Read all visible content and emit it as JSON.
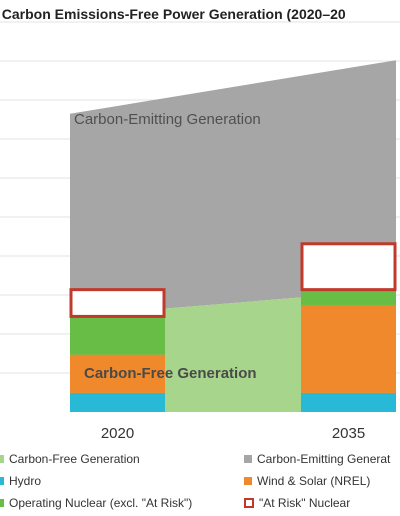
{
  "chart_data": {
    "type": "area",
    "title": ". Carbon Emissions-Free Power Generation (2020–20",
    "categories": [
      "2020",
      "2035"
    ],
    "annotations": [
      "Carbon-Emitting Generation",
      "Carbon-Free Generation"
    ],
    "series": [
      {
        "name": "Hydro",
        "values": [
          5,
          5
        ],
        "color": "#27b9d6"
      },
      {
        "name": "Wind & Solar (NREL)",
        "values": [
          10,
          23
        ],
        "color": "#f0892c"
      },
      {
        "name": "Operating Nuclear (excl. \"At Risk\")",
        "values": [
          10,
          4
        ],
        "color": "#67bd45"
      },
      {
        "name": "\"At Risk\" Nuclear",
        "values": [
          7,
          12
        ],
        "color": "#c0392b"
      },
      {
        "name": "Carbon-Free Generation",
        "values": [
          25,
          32
        ],
        "color": "#a7d58b"
      },
      {
        "name": "Carbon-Emitting Generation",
        "values": [
          78,
          92
        ],
        "color": "#a6a6a6"
      }
    ],
    "ylim": [
      0,
      102
    ],
    "gridlines": 10,
    "grid": true
  },
  "legend": [
    {
      "label": "Carbon-Free Generation",
      "color": "#a7d58b",
      "style": "square"
    },
    {
      "label": "Carbon-Emitting Generat",
      "color": "#a6a6a6",
      "style": "square"
    },
    {
      "label": "Hydro",
      "color": "#27b9d6",
      "style": "square"
    },
    {
      "label": "Wind & Solar (NREL)",
      "color": "#f0892c",
      "style": "square"
    },
    {
      "label": "Operating Nuclear (excl. \"At Risk\")",
      "color": "#67bd45",
      "style": "square"
    },
    {
      "label": "\"At Risk\" Nuclear",
      "color": "#c0392b",
      "style": "box"
    }
  ]
}
